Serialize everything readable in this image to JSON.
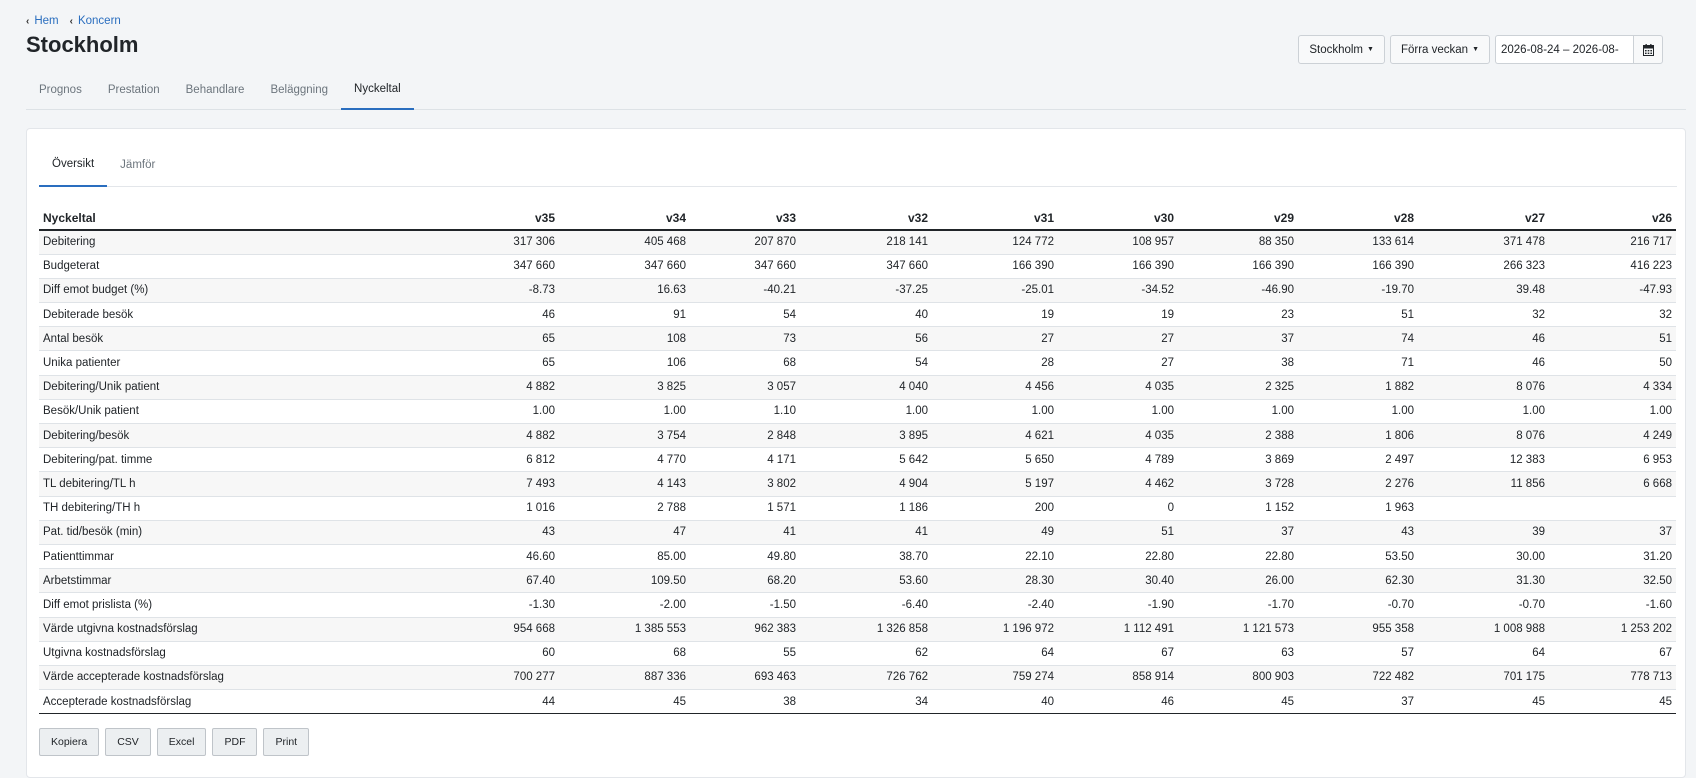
{
  "breadcrumb": {
    "items": [
      "Hem",
      "Koncern"
    ]
  },
  "title": "Stockholm",
  "controls": {
    "location": "Stockholm",
    "period": "Förra veckan",
    "date_range": "2026-08-24 – 2026-08-"
  },
  "icons": {
    "calendar": "calendar-icon",
    "back": "chevron-left-icon"
  },
  "main_tabs": [
    "Prognos",
    "Prestation",
    "Behandlare",
    "Beläggning",
    "Nyckeltal"
  ],
  "main_tab_active": "Nyckeltal",
  "sub_tabs": [
    "Översikt",
    "Jämför"
  ],
  "sub_tab_active": "Översikt",
  "table": {
    "columns": [
      "Nyckeltal",
      "v35",
      "v34",
      "v33",
      "v32",
      "v31",
      "v30",
      "v29",
      "v28",
      "v27",
      "v26"
    ],
    "rows": [
      [
        "Debitering",
        "317 306",
        "405 468",
        "207 870",
        "218 141",
        "124 772",
        "108 957",
        "88 350",
        "133 614",
        "371 478",
        "216 717"
      ],
      [
        "Budgeterat",
        "347 660",
        "347 660",
        "347 660",
        "347 660",
        "166 390",
        "166 390",
        "166 390",
        "166 390",
        "266 323",
        "416 223"
      ],
      [
        "Diff emot budget (%)",
        "-8.73",
        "16.63",
        "-40.21",
        "-37.25",
        "-25.01",
        "-34.52",
        "-46.90",
        "-19.70",
        "39.48",
        "-47.93"
      ],
      [
        "Debiterade besök",
        "46",
        "91",
        "54",
        "40",
        "19",
        "19",
        "23",
        "51",
        "32",
        "32"
      ],
      [
        "Antal besök",
        "65",
        "108",
        "73",
        "56",
        "27",
        "27",
        "37",
        "74",
        "46",
        "51"
      ],
      [
        "Unika patienter",
        "65",
        "106",
        "68",
        "54",
        "28",
        "27",
        "38",
        "71",
        "46",
        "50"
      ],
      [
        "Debitering/Unik patient",
        "4 882",
        "3 825",
        "3 057",
        "4 040",
        "4 456",
        "4 035",
        "2 325",
        "1 882",
        "8 076",
        "4 334"
      ],
      [
        "Besök/Unik patient",
        "1.00",
        "1.00",
        "1.10",
        "1.00",
        "1.00",
        "1.00",
        "1.00",
        "1.00",
        "1.00",
        "1.00"
      ],
      [
        "Debitering/besök",
        "4 882",
        "3 754",
        "2 848",
        "3 895",
        "4 621",
        "4 035",
        "2 388",
        "1 806",
        "8 076",
        "4 249"
      ],
      [
        "Debitering/pat. timme",
        "6 812",
        "4 770",
        "4 171",
        "5 642",
        "5 650",
        "4 789",
        "3 869",
        "2 497",
        "12 383",
        "6 953"
      ],
      [
        "TL debitering/TL h",
        "7 493",
        "4 143",
        "3 802",
        "4 904",
        "5 197",
        "4 462",
        "3 728",
        "2 276",
        "11 856",
        "6 668"
      ],
      [
        "TH debitering/TH h",
        "1 016",
        "2 788",
        "1 571",
        "1 186",
        "200",
        "0",
        "1 152",
        "1 963",
        "",
        ""
      ],
      [
        "Pat. tid/besök (min)",
        "43",
        "47",
        "41",
        "41",
        "49",
        "51",
        "37",
        "43",
        "39",
        "37"
      ],
      [
        "Patienttimmar",
        "46.60",
        "85.00",
        "49.80",
        "38.70",
        "22.10",
        "22.80",
        "22.80",
        "53.50",
        "30.00",
        "31.20"
      ],
      [
        "Arbetstimmar",
        "67.40",
        "109.50",
        "68.20",
        "53.60",
        "28.30",
        "30.40",
        "26.00",
        "62.30",
        "31.30",
        "32.50"
      ],
      [
        "Diff emot prislista (%)",
        "-1.30",
        "-2.00",
        "-1.50",
        "-6.40",
        "-2.40",
        "-1.90",
        "-1.70",
        "-0.70",
        "-0.70",
        "-1.60"
      ],
      [
        "Värde utgivna kostnadsförslag",
        "954 668",
        "1 385 553",
        "962 383",
        "1 326 858",
        "1 196 972",
        "1 112 491",
        "1 121 573",
        "955 358",
        "1 008 988",
        "1 253 202"
      ],
      [
        "Utgivna kostnadsförslag",
        "60",
        "68",
        "55",
        "62",
        "64",
        "67",
        "63",
        "57",
        "64",
        "67"
      ],
      [
        "Värde accepterade kostnadsförslag",
        "700 277",
        "887 336",
        "693 463",
        "726 762",
        "759 274",
        "858 914",
        "800 903",
        "722 482",
        "701 175",
        "778 713"
      ],
      [
        "Accepterade kostnadsförslag",
        "44",
        "45",
        "38",
        "34",
        "40",
        "46",
        "45",
        "37",
        "45",
        "45"
      ]
    ]
  },
  "export_buttons": [
    "Kopiera",
    "CSV",
    "Excel",
    "PDF",
    "Print"
  ],
  "colors": {
    "accent": "#2a6ebf",
    "text": "#212529",
    "muted": "#6c757d"
  }
}
